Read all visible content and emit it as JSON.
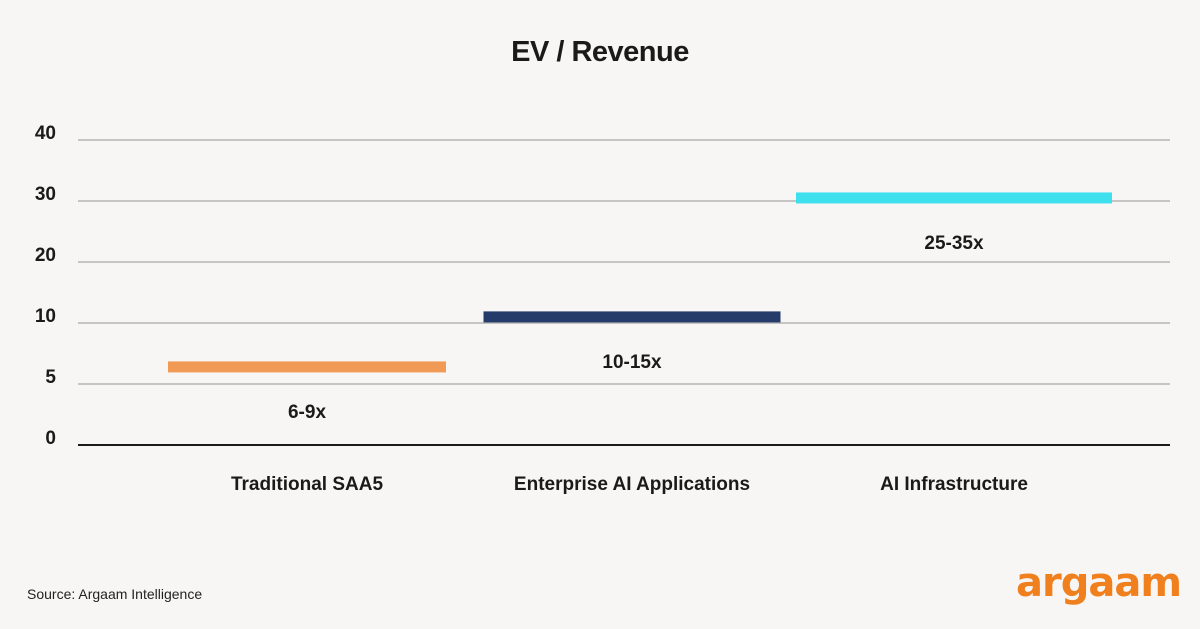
{
  "chart_data": {
    "type": "range-bar",
    "title": "EV / Revenue",
    "xlabel": "",
    "ylabel": "",
    "yticks": [
      0,
      5,
      10,
      20,
      30,
      40
    ],
    "ylim": [
      0,
      40
    ],
    "grid": true,
    "categories": [
      "Traditional SAA5",
      "Enterprise AI Applications",
      "AI Infrastructure"
    ],
    "series": [
      {
        "category": "Traditional SAA5",
        "range": [
          6,
          9
        ],
        "level": 6.4,
        "label": "6-9x",
        "color": "#f19a55"
      },
      {
        "category": "Enterprise AI Applications",
        "range": [
          10,
          15
        ],
        "level": 11,
        "label": "10-15x",
        "color": "#253c6b"
      },
      {
        "category": "AI Infrastructure",
        "range": [
          25,
          35
        ],
        "level": 30.5,
        "label": "25-35x",
        "color": "#3ee0ee"
      }
    ]
  },
  "footer": {
    "source": "Source: Argaam Intelligence",
    "logo": "argaam"
  }
}
